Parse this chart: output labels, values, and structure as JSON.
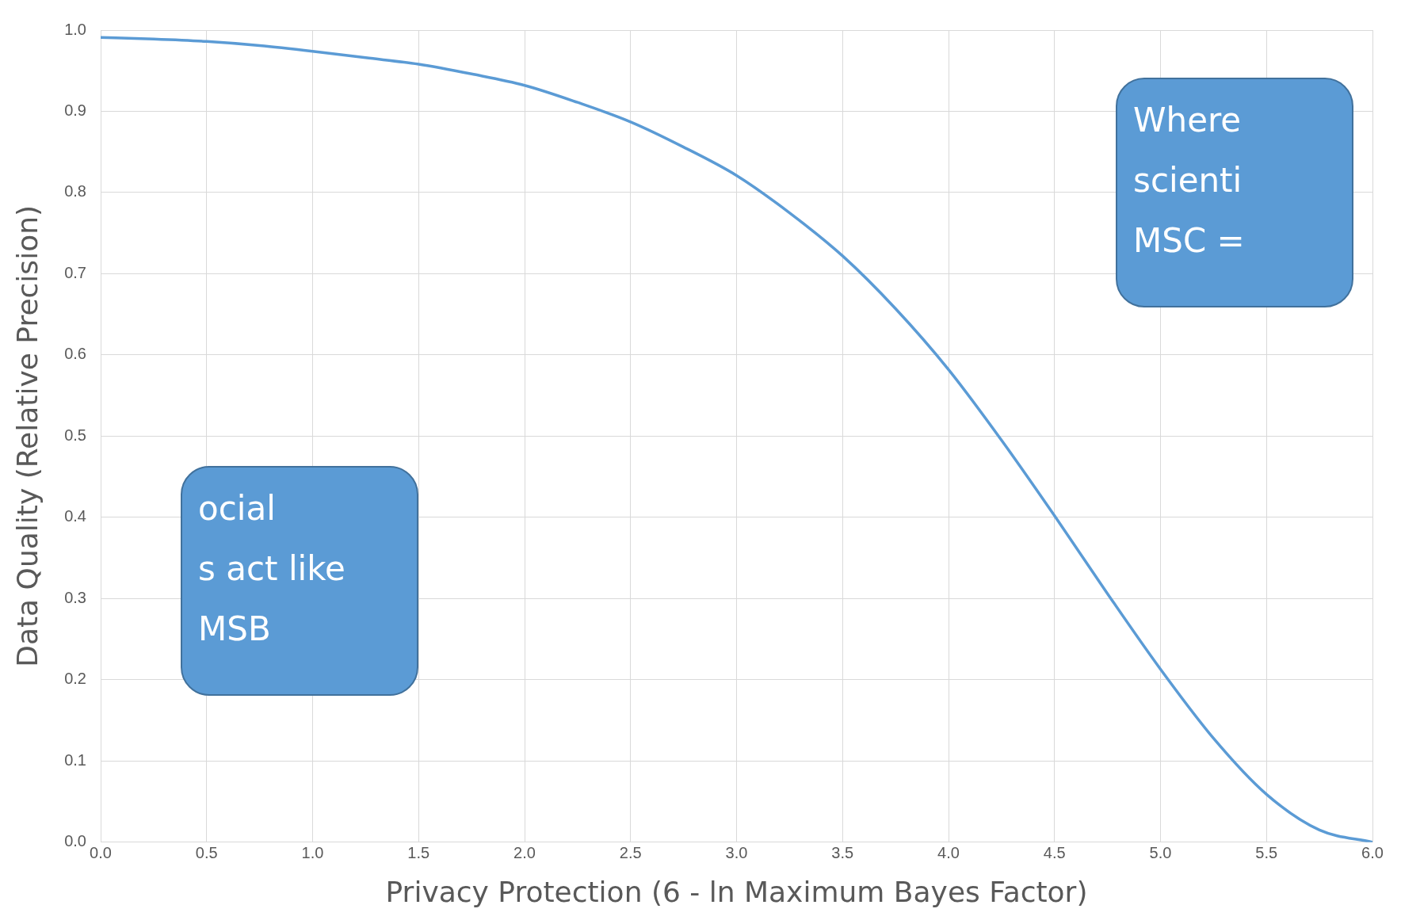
{
  "chart_data": {
    "type": "line",
    "xlabel": "Privacy Protection (6 - ln Maximum Bayes Factor)",
    "ylabel": "Data Quality (Relative Precision)",
    "x": [
      0,
      0.25,
      0.5,
      0.75,
      1,
      1.25,
      1.5,
      1.75,
      2,
      2.25,
      2.5,
      2.75,
      3,
      3.25,
      3.5,
      3.75,
      4,
      4.25,
      4.5,
      4.75,
      5,
      5.25,
      5.5,
      5.75,
      6
    ],
    "series": [
      {
        "color": "#5b9bd5",
        "values": [
          0.991,
          0.989,
          0.986,
          0.981,
          0.974,
          0.966,
          0.958,
          0.946,
          0.932,
          0.911,
          0.887,
          0.856,
          0.821,
          0.775,
          0.722,
          0.657,
          0.582,
          0.495,
          0.402,
          0.306,
          0.213,
          0.128,
          0.059,
          0.015,
          0.0
        ]
      }
    ],
    "xlim": [
      0,
      6
    ],
    "xticks": [
      {
        "value": 0,
        "label": "0.0"
      },
      {
        "value": 0.5,
        "label": "0.5"
      },
      {
        "value": 1,
        "label": "1.0"
      },
      {
        "value": 1.5,
        "label": "1.5"
      },
      {
        "value": 2,
        "label": "2.0"
      },
      {
        "value": 2.5,
        "label": "2.5"
      },
      {
        "value": 3,
        "label": "3.0"
      },
      {
        "value": 3.5,
        "label": "3.5"
      },
      {
        "value": 4,
        "label": "4.0"
      },
      {
        "value": 4.5,
        "label": "4.5"
      },
      {
        "value": 5,
        "label": "5.0"
      },
      {
        "value": 5.5,
        "label": "5.5"
      },
      {
        "value": 6,
        "label": "6.0"
      }
    ],
    "ylim": [
      0,
      1
    ],
    "yticks": [
      {
        "value": 0,
        "label": "0.0"
      },
      {
        "value": 0.1,
        "label": "0.1"
      },
      {
        "value": 0.2,
        "label": "0.2"
      },
      {
        "value": 0.3,
        "label": "0.3"
      },
      {
        "value": 0.4,
        "label": "0.4"
      },
      {
        "value": 0.5,
        "label": "0.5"
      },
      {
        "value": 0.6,
        "label": "0.6"
      },
      {
        "value": 0.7,
        "label": "0.7"
      },
      {
        "value": 0.8,
        "label": "0.8"
      },
      {
        "value": 0.9,
        "label": "0.9"
      },
      {
        "value": 1,
        "label": "1.0"
      }
    ],
    "grid": true,
    "legend": false,
    "marker": "none",
    "line_style": "solid",
    "annotations": [
      "ocial\ns act like\nMSB",
      "Where\nscienti\nMSC ="
    ]
  }
}
